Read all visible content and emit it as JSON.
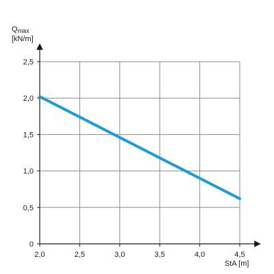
{
  "chart_data": {
    "type": "line",
    "ylabel_name": "Qmax",
    "ylabel_main": "Q",
    "ylabel_sub": "max",
    "ylabel_unit": "[kN/m]",
    "xlabel": "StA [m]",
    "xlim": [
      2.0,
      4.5
    ],
    "ylim": [
      0,
      2.5
    ],
    "x_ticks": [
      2.0,
      2.5,
      3.0,
      3.5,
      4.0,
      4.5
    ],
    "y_ticks": [
      0,
      0.5,
      1.0,
      1.5,
      2.0,
      2.5
    ],
    "x_tick_labels": [
      "2,0",
      "2,5",
      "3,0",
      "3,5",
      "4,0",
      "4,5"
    ],
    "y_tick_labels": [
      "0",
      "0,5",
      "1,0",
      "1,5",
      "2,0",
      "2,5"
    ],
    "grid": true,
    "series": [
      {
        "x": [
          2.0,
          4.5
        ],
        "y": [
          2.02,
          0.62
        ],
        "color": "#1f9ad6"
      }
    ]
  }
}
